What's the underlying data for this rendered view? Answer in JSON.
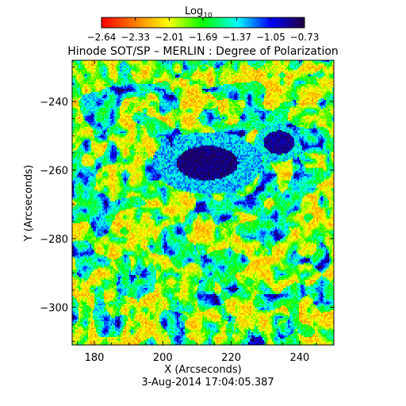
{
  "chart_data": {
    "type": "heatmap",
    "title": "Hinode SOT/SP – MERLIN : Degree of Polarization",
    "colorbar": {
      "label_base": "Log",
      "label_sub": "10",
      "ticks": [
        "−2.64",
        "−2.33",
        "−2.01",
        "−1.69",
        "−1.37",
        "−1.05",
        "−0.73"
      ],
      "range": [
        -2.64,
        -0.73
      ],
      "colormap": [
        "#ff0000",
        "#ff7f00",
        "#ffff00",
        "#00ff00",
        "#00ffff",
        "#0000ff",
        "#200040"
      ]
    },
    "xlabel": "X (Arcseconds)",
    "ylabel": "Y (Arcseconds)",
    "xlim": [
      173.5,
      250
    ],
    "ylim": [
      -311,
      -228
    ],
    "xticks": [
      180,
      200,
      220,
      240
    ],
    "xtick_labels": [
      "180",
      "200",
      "220",
      "240"
    ],
    "yticks": [
      -240,
      -260,
      -280,
      -300
    ],
    "ytick_labels": [
      "−240",
      "−260",
      "−280",
      "−300"
    ],
    "features": [
      {
        "name": "sunspot-umbra-main",
        "x": 212,
        "y": -258,
        "value": -0.8
      },
      {
        "name": "pore-right",
        "x": 235,
        "y": -252,
        "value": -0.9
      }
    ],
    "timestamp": "3-Aug-2014  17:04:05.387"
  }
}
